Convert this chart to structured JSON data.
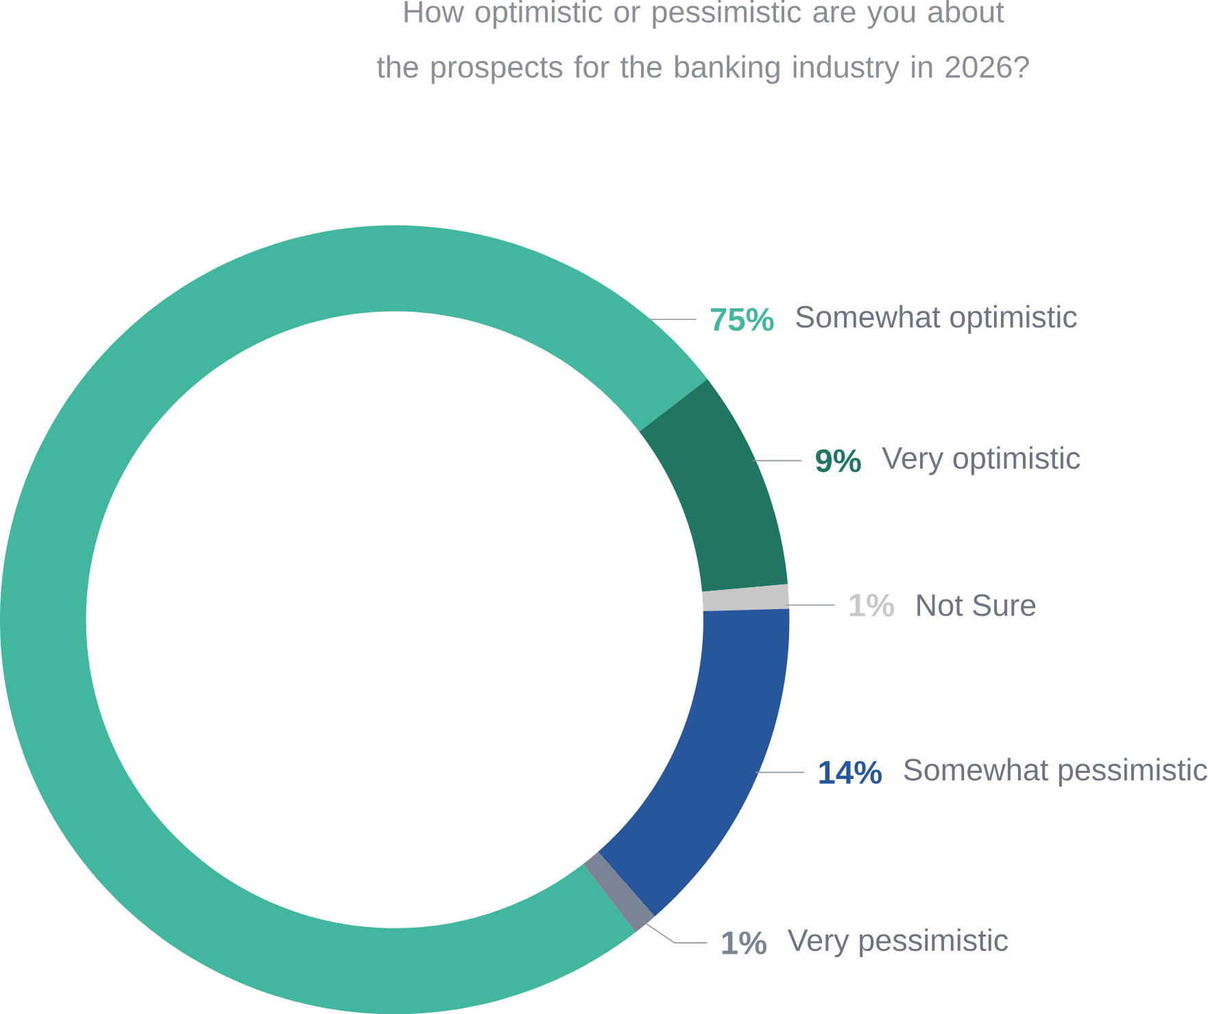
{
  "chart_data": {
    "type": "donut",
    "title": "How optimistic or pessimistic are you about the prospects for the banking industry in 2026?",
    "categories": [
      "Somewhat optimistic",
      "Very optimistic",
      "Not Sure",
      "Somewhat pessimistic",
      "Very pessimistic"
    ],
    "values": [
      75,
      9,
      1,
      14,
      1
    ],
    "value_labels": [
      "75%",
      "9%",
      "1%",
      "14%",
      "1%"
    ],
    "colors": [
      "#43b69f",
      "#207663",
      "#c8c8c8",
      "#27579a",
      "#7a8494"
    ]
  }
}
